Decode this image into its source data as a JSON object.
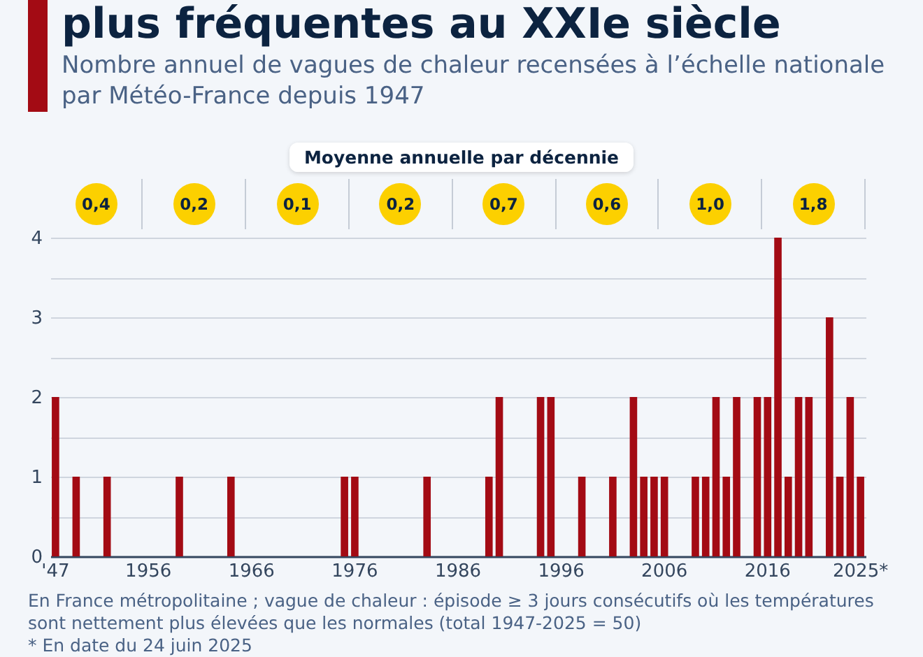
{
  "chart_data": {
    "type": "bar",
    "title": "plus fréquentes au XXIe siècle",
    "subtitle": "Nombre annuel de vagues de chaleur recensées à l’échelle nationale par Météo-France depuis 1947",
    "categories": [
      "'47",
      null,
      null,
      null,
      null,
      null,
      null,
      null,
      null,
      "1956",
      null,
      null,
      null,
      null,
      null,
      null,
      null,
      null,
      null,
      "1966",
      null,
      null,
      null,
      null,
      null,
      null,
      null,
      null,
      null,
      "1976",
      null,
      null,
      null,
      null,
      null,
      null,
      null,
      null,
      null,
      "1986",
      null,
      null,
      null,
      null,
      null,
      null,
      null,
      null,
      null,
      "1996",
      null,
      null,
      null,
      null,
      null,
      null,
      null,
      null,
      null,
      "2006",
      null,
      null,
      null,
      null,
      null,
      null,
      null,
      null,
      null,
      "2016",
      null,
      null,
      null,
      null,
      null,
      null,
      null,
      null,
      "2025*"
    ],
    "values": [
      2,
      0,
      1,
      0,
      0,
      1,
      0,
      0,
      0,
      0,
      0,
      0,
      1,
      0,
      0,
      0,
      0,
      1,
      0,
      0,
      0,
      0,
      0,
      0,
      0,
      0,
      0,
      0,
      1,
      1,
      0,
      0,
      0,
      0,
      0,
      0,
      1,
      0,
      0,
      0,
      0,
      0,
      1,
      2,
      0,
      0,
      0,
      2,
      2,
      0,
      0,
      1,
      0,
      0,
      1,
      0,
      2,
      1,
      1,
      1,
      0,
      0,
      1,
      1,
      2,
      1,
      2,
      0,
      2,
      2,
      4,
      1,
      2,
      2,
      0,
      3,
      1,
      2,
      1
    ],
    "color": "#a30b14",
    "ylim": [
      0,
      4
    ],
    "yticks": [
      0,
      {
        "value": 0.5,
        "label": null
      },
      1,
      {
        "value": 1.5,
        "label": null
      },
      2,
      {
        "value": 2.5,
        "label": null
      },
      3,
      {
        "value": 3.5,
        "label": null
      },
      4
    ],
    "grid": "y",
    "annotations": [
      "Moyenne annuelle par décennie",
      "0,4",
      "0,2",
      "0,1",
      "0,2",
      "0,7",
      "0,6",
      "1,0",
      "1,8",
      "En France métropolitaine ; vague de chaleur : épisode ≥ 3 jours consécutifs où les températures sont nettement plus élevées que les normales (total 1947-2025 = 50)",
      "* En date du 24 juin 2025"
    ]
  }
}
